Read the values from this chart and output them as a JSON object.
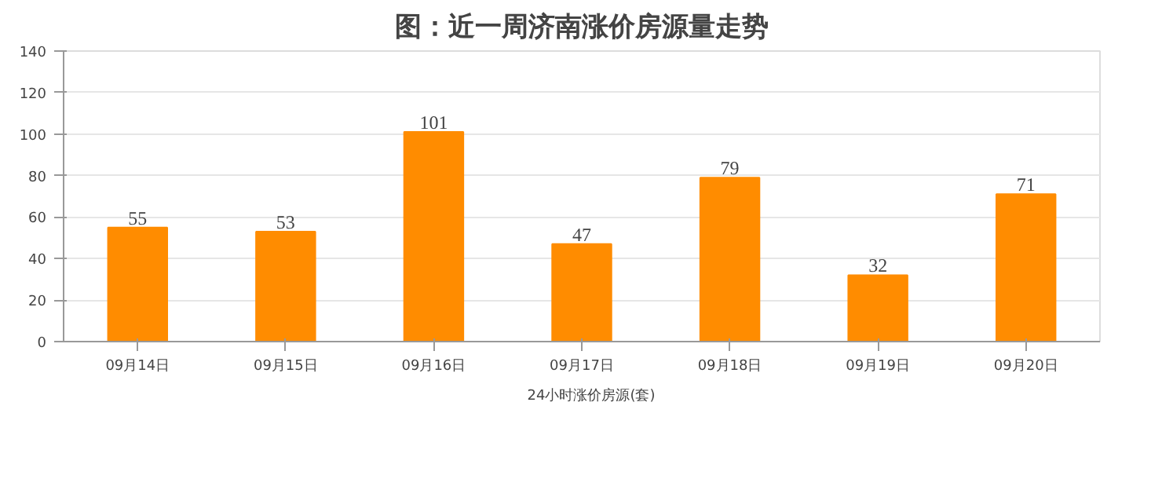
{
  "chart_data": {
    "type": "bar",
    "title": "图：近一周济南涨价房源量走势",
    "categories": [
      "09月14日",
      "09月15日",
      "09月16日",
      "09月17日",
      "09月18日",
      "09月19日",
      "09月20日"
    ],
    "series": [
      {
        "name": "24小时涨价房源(套)",
        "color": "#ff8c00",
        "values": [
          55,
          53,
          101,
          47,
          79,
          32,
          71
        ]
      }
    ],
    "ylim": [
      0,
      140
    ],
    "yticks": [
      0,
      20,
      40,
      60,
      80,
      100,
      120,
      140
    ],
    "grid": "y",
    "legend": "bottom",
    "data_labels": true
  }
}
